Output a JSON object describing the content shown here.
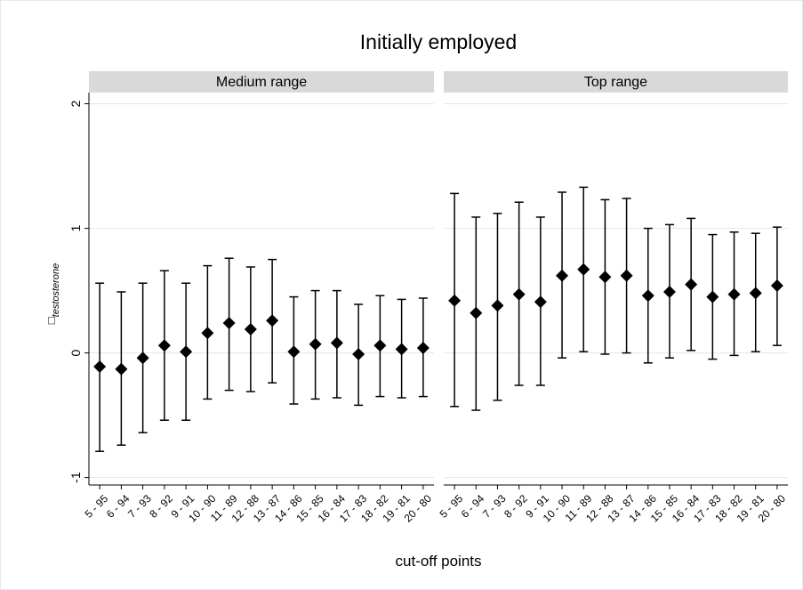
{
  "chart_data": {
    "type": "errorbar",
    "title": "Initially employed",
    "xlabel": "cut-off points",
    "ylabel_symbol": "□",
    "ylabel_subscript": "testosterone",
    "ylim": [
      -1.06,
      2.09
    ],
    "yticks": [
      -1,
      0,
      1,
      2
    ],
    "grid": true,
    "color": "#000000",
    "categories": [
      "5 - 95",
      "6 - 94",
      "7 - 93",
      "8 - 92",
      "9 - 91",
      "10 - 90",
      "11 - 89",
      "12 - 88",
      "13 - 87",
      "14 - 86",
      "15 - 85",
      "16 - 84",
      "17 - 83",
      "18 - 82",
      "19 - 81",
      "20 - 80"
    ],
    "panels": [
      {
        "title": "Medium range",
        "values": [
          -0.11,
          -0.13,
          -0.04,
          0.06,
          0.01,
          0.16,
          0.24,
          0.19,
          0.26,
          0.01,
          0.07,
          0.08,
          -0.01,
          0.06,
          0.03,
          0.04
        ],
        "upper": [
          0.56,
          0.49,
          0.56,
          0.66,
          0.56,
          0.7,
          0.76,
          0.69,
          0.75,
          0.45,
          0.5,
          0.5,
          0.39,
          0.46,
          0.43,
          0.44
        ],
        "lower": [
          -0.79,
          -0.74,
          -0.64,
          -0.54,
          -0.54,
          -0.37,
          -0.3,
          -0.31,
          -0.24,
          -0.41,
          -0.37,
          -0.36,
          -0.42,
          -0.35,
          -0.36,
          -0.35
        ]
      },
      {
        "title": "Top range",
        "values": [
          0.42,
          0.32,
          0.38,
          0.47,
          0.41,
          0.62,
          0.67,
          0.61,
          0.62,
          0.46,
          0.49,
          0.55,
          0.45,
          0.47,
          0.48,
          0.54
        ],
        "upper": [
          1.28,
          1.09,
          1.12,
          1.21,
          1.09,
          1.29,
          1.33,
          1.23,
          1.24,
          1.0,
          1.03,
          1.08,
          0.95,
          0.97,
          0.96,
          1.01
        ],
        "lower": [
          -0.43,
          -0.46,
          -0.38,
          -0.26,
          -0.26,
          -0.04,
          0.01,
          -0.01,
          0.0,
          -0.08,
          -0.04,
          0.02,
          -0.05,
          -0.02,
          0.01,
          0.06
        ]
      }
    ]
  }
}
